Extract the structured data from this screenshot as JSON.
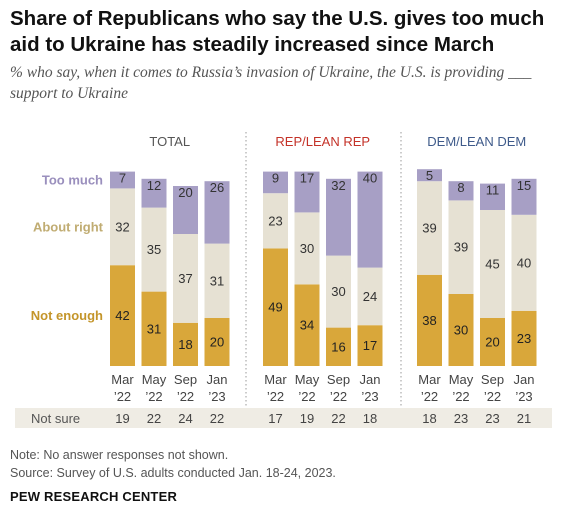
{
  "title": "Share of Republicans who say the U.S. gives too much aid to Ukraine has steadily increased since March",
  "subtitle": "% who say, when it comes to Russia’s invasion of Ukraine, the U.S. is providing ___ support to Ukraine",
  "note": "Note: No answer responses not shown.",
  "source": "Source: Survey of U.S. adults conducted Jan. 18-24, 2023.",
  "org": "PEW RESEARCH CENTER",
  "colors": {
    "too_much": "#a79fc5",
    "about_right": "#e6e1d3",
    "not_enough": "#d9a73a",
    "total_header": "#555555",
    "rep_header": "#c43228",
    "dem_header": "#3e5a8a",
    "not_sure_band": "#efece4"
  },
  "chart_data": {
    "type": "bar",
    "stacked": true,
    "ylim": [
      0,
      100
    ],
    "categories": [
      "Mar '22",
      "May '22",
      "Sep '22",
      "Jan '23"
    ],
    "category_labels": [
      [
        "Mar",
        "’22"
      ],
      [
        "May",
        "’22"
      ],
      [
        "Sep",
        "’22"
      ],
      [
        "Jan",
        "’23"
      ]
    ],
    "series_labels": [
      "Too much",
      "About right",
      "Not enough"
    ],
    "not_sure_label": "Not sure",
    "panels": [
      {
        "name": "TOTAL",
        "header_color": "total_header",
        "series": [
          {
            "name": "Not enough",
            "values": [
              42,
              31,
              18,
              20
            ]
          },
          {
            "name": "About right",
            "values": [
              32,
              35,
              37,
              31
            ]
          },
          {
            "name": "Too much",
            "values": [
              7,
              12,
              20,
              26
            ]
          }
        ],
        "not_sure": [
          19,
          22,
          24,
          22
        ]
      },
      {
        "name": "REP/LEAN REP",
        "header_color": "rep_header",
        "series": [
          {
            "name": "Not enough",
            "values": [
              49,
              34,
              16,
              17
            ]
          },
          {
            "name": "About right",
            "values": [
              23,
              30,
              30,
              24
            ]
          },
          {
            "name": "Too much",
            "values": [
              9,
              17,
              32,
              40
            ]
          }
        ],
        "not_sure": [
          17,
          19,
          22,
          18
        ]
      },
      {
        "name": "DEM/LEAN DEM",
        "header_color": "dem_header",
        "series": [
          {
            "name": "Not enough",
            "values": [
              38,
              30,
              20,
              23
            ]
          },
          {
            "name": "About right",
            "values": [
              39,
              39,
              45,
              40
            ]
          },
          {
            "name": "Too much",
            "values": [
              5,
              8,
              11,
              15
            ]
          }
        ],
        "not_sure": [
          18,
          23,
          23,
          21
        ]
      }
    ]
  }
}
